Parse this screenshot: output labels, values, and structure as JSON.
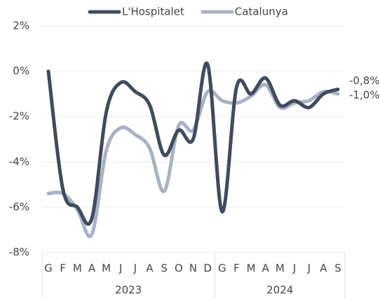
{
  "chart_data": {
    "type": "line",
    "categories": [
      "G",
      "F",
      "M",
      "A",
      "M",
      "J",
      "J",
      "A",
      "S",
      "O",
      "N",
      "D",
      "G",
      "F",
      "M",
      "A",
      "M",
      "J",
      "J",
      "A",
      "S"
    ],
    "groups": [
      {
        "label": "2023",
        "count": 12
      },
      {
        "label": "2024",
        "count": 9
      }
    ],
    "series": [
      {
        "name": "L'Hospitalet",
        "color": "#414a5e",
        "values": [
          0.0,
          -5.2,
          -6.0,
          -6.5,
          -1.8,
          -0.5,
          -0.9,
          -1.5,
          -3.7,
          -2.6,
          -3.0,
          0.3,
          -6.2,
          -0.7,
          -1.0,
          -0.3,
          -1.5,
          -1.3,
          -1.6,
          -1.0,
          -0.8
        ],
        "end_label": "-0,8%"
      },
      {
        "name": "Catalunya",
        "color": "#a9b1c3",
        "values": [
          -5.4,
          -5.4,
          -6.1,
          -7.2,
          -3.5,
          -2.5,
          -2.8,
          -3.4,
          -5.3,
          -2.4,
          -2.6,
          -0.9,
          -1.3,
          -1.4,
          -1.1,
          -0.6,
          -1.6,
          -1.4,
          -1.3,
          -0.9,
          -1.0
        ],
        "end_label": "-1,0%"
      }
    ],
    "ylim": [
      -8,
      2
    ],
    "yticks": [
      {
        "value": 2,
        "label": "2%"
      },
      {
        "value": 0,
        "label": "0%"
      },
      {
        "value": -2,
        "label": "-2%"
      },
      {
        "value": -4,
        "label": "-4%"
      },
      {
        "value": -6,
        "label": "-6%"
      },
      {
        "value": -8,
        "label": "-8%"
      }
    ],
    "grid": true,
    "legend": "top"
  }
}
